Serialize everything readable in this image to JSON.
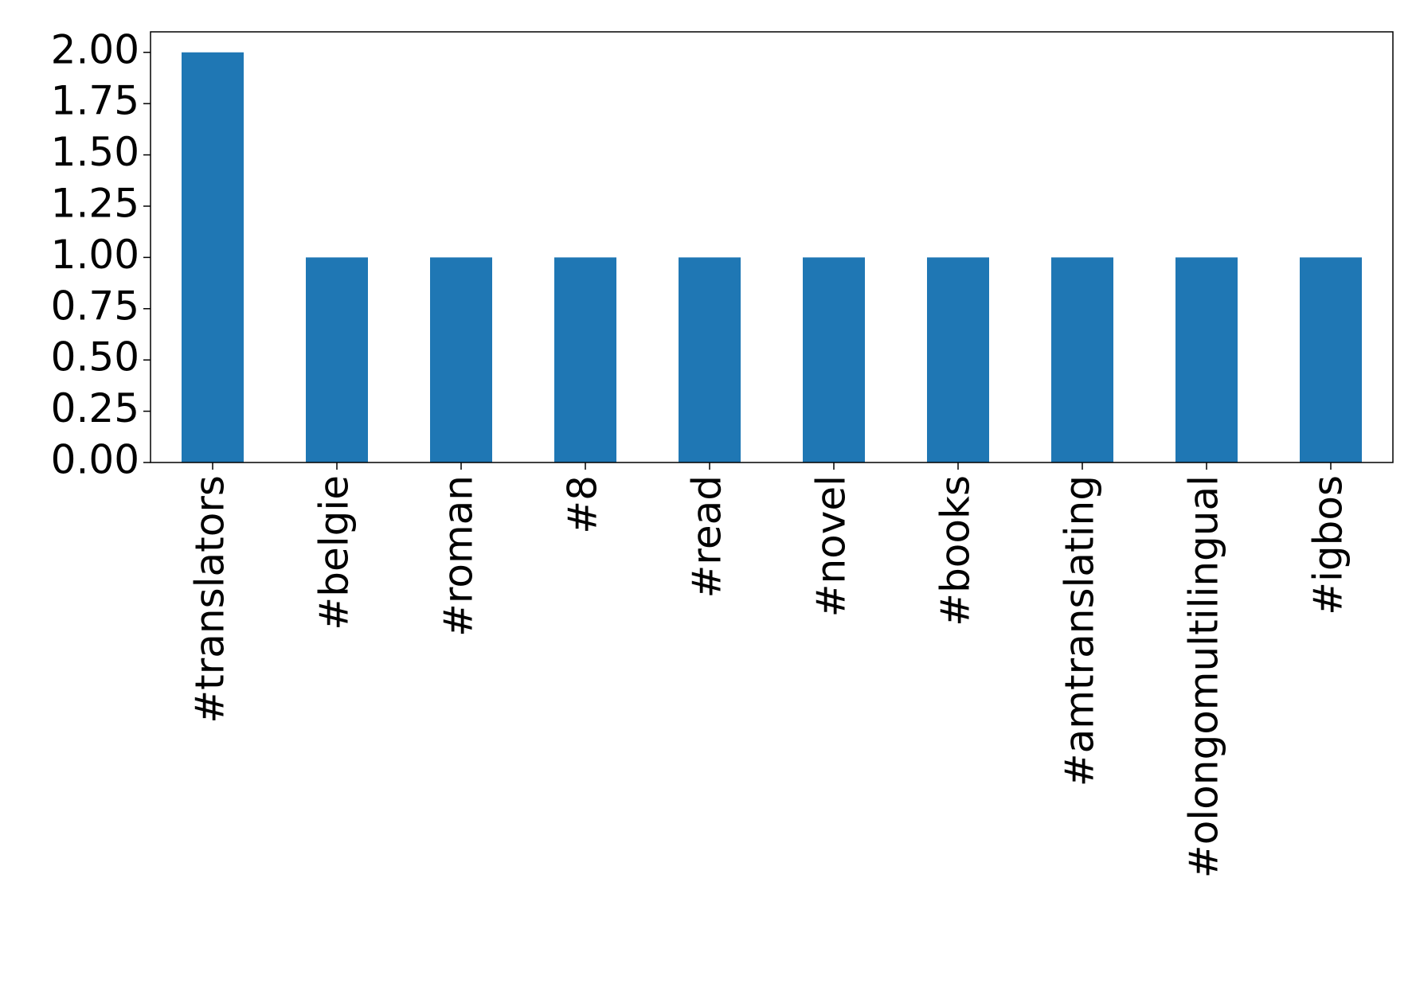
{
  "chart_data": {
    "type": "bar",
    "categories": [
      "#translators",
      "#belgie",
      "#roman",
      "#8",
      "#read",
      "#novel",
      "#books",
      "#amtranslating",
      "#olongomultilingual",
      "#igbos"
    ],
    "values": [
      2,
      1,
      1,
      1,
      1,
      1,
      1,
      1,
      1,
      1
    ],
    "color": "#1f77b4",
    "ylim": [
      0,
      2.1
    ],
    "yticks": [
      {
        "value": 0,
        "label": "0.00"
      },
      {
        "value": 0.25,
        "label": "0.25"
      },
      {
        "value": 0.5,
        "label": "0.50"
      },
      {
        "value": 0.75,
        "label": "0.75"
      },
      {
        "value": 1,
        "label": "1.00"
      },
      {
        "value": 1.25,
        "label": "1.25"
      },
      {
        "value": 1.5,
        "label": "1.50"
      },
      {
        "value": 1.75,
        "label": "1.75"
      },
      {
        "value": 2,
        "label": "2.00"
      }
    ],
    "grid": false
  }
}
